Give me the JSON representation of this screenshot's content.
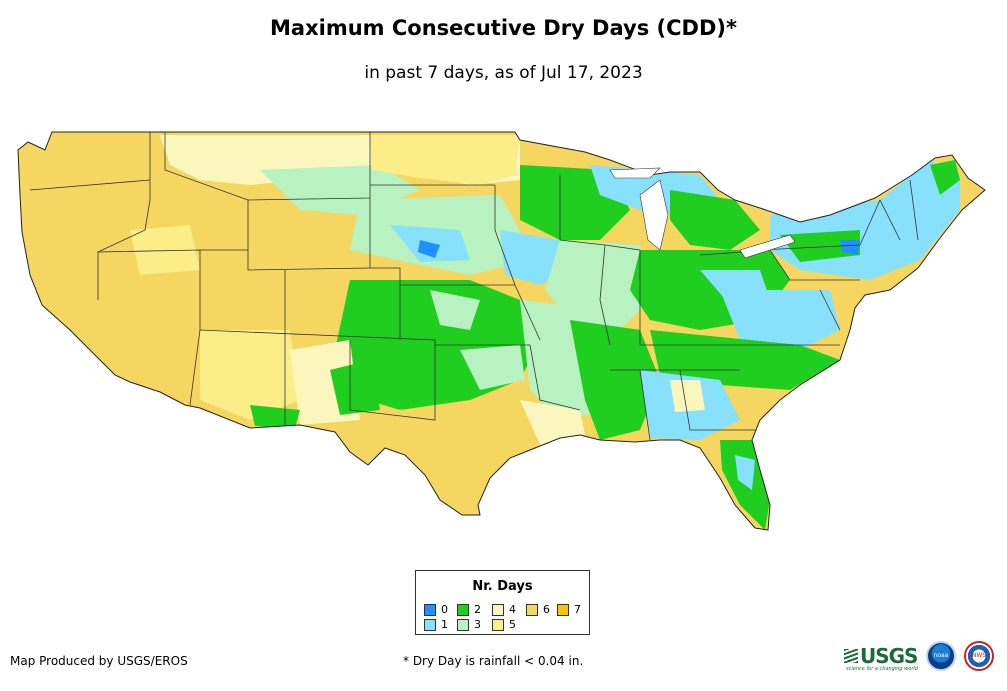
{
  "map": {
    "title": "Maximum Consecutive Dry Days (CDD)*",
    "subtitle": "in past 7 days, as of Jul 17, 2023",
    "credit": "Map Produced by USGS/EROS",
    "footnote": "* Dry Day is rainfall < 0.04 in."
  },
  "legend": {
    "title": "Nr. Days",
    "items": [
      {
        "label": "0",
        "color": "#1e90ff"
      },
      {
        "label": "1",
        "color": "#87e1fb"
      },
      {
        "label": "2",
        "color": "#1fce1f"
      },
      {
        "label": "3",
        "color": "#b7f2c0"
      },
      {
        "label": "4",
        "color": "#fbf7bc"
      },
      {
        "label": "5",
        "color": "#fbed87"
      },
      {
        "label": "6",
        "color": "#f5d660"
      },
      {
        "label": "7",
        "color": "#f7c30b"
      }
    ]
  },
  "logos": {
    "usgs": "USGS",
    "usgs_tagline": "science for a changing world",
    "noaa": "noaa",
    "nws": "NWS"
  },
  "colors": {
    "background": "#ffffff",
    "state_border": "#333333",
    "dry_6": "#f5d660",
    "dry_1": "#87e1fb",
    "dry_2": "#1fce1f"
  }
}
